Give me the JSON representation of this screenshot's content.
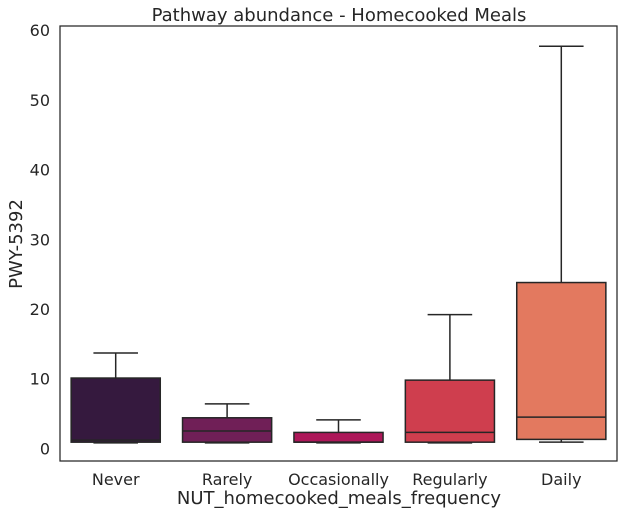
{
  "chart_data": {
    "type": "box",
    "title": "Pathway abundance - Homecooked Meals",
    "xlabel": "NUT_homecooked_meals_frequency",
    "ylabel": "PWY-5392",
    "ylim": [
      -1.8,
      60.6
    ],
    "yticks": [
      0,
      10,
      20,
      30,
      40,
      50,
      60
    ],
    "grid": false,
    "categories": [
      "Never",
      "Rarely",
      "Occasionally",
      "Regularly",
      "Daily"
    ],
    "boxes": [
      {
        "category": "Never",
        "whisker_low": 0.8,
        "q1": 0.9,
        "median": 1.2,
        "q3": 10.1,
        "whisker_high": 13.7,
        "color": "#35193e"
      },
      {
        "category": "Rarely",
        "whisker_low": 0.8,
        "q1": 0.9,
        "median": 2.5,
        "q3": 4.4,
        "whisker_high": 6.4,
        "color": "#701f57"
      },
      {
        "category": "Occasionally",
        "whisker_low": 0.8,
        "q1": 0.9,
        "median": 0.9,
        "q3": 2.3,
        "whisker_high": 4.1,
        "color": "#ad1759"
      },
      {
        "category": "Regularly",
        "whisker_low": 0.8,
        "q1": 0.9,
        "median": 2.3,
        "q3": 9.8,
        "whisker_high": 19.2,
        "color": "#cf3e4e"
      },
      {
        "category": "Daily",
        "whisker_low": 0.9,
        "q1": 1.3,
        "median": 4.5,
        "q3": 23.8,
        "whisker_high": 57.7,
        "color": "#e3795f"
      }
    ]
  }
}
